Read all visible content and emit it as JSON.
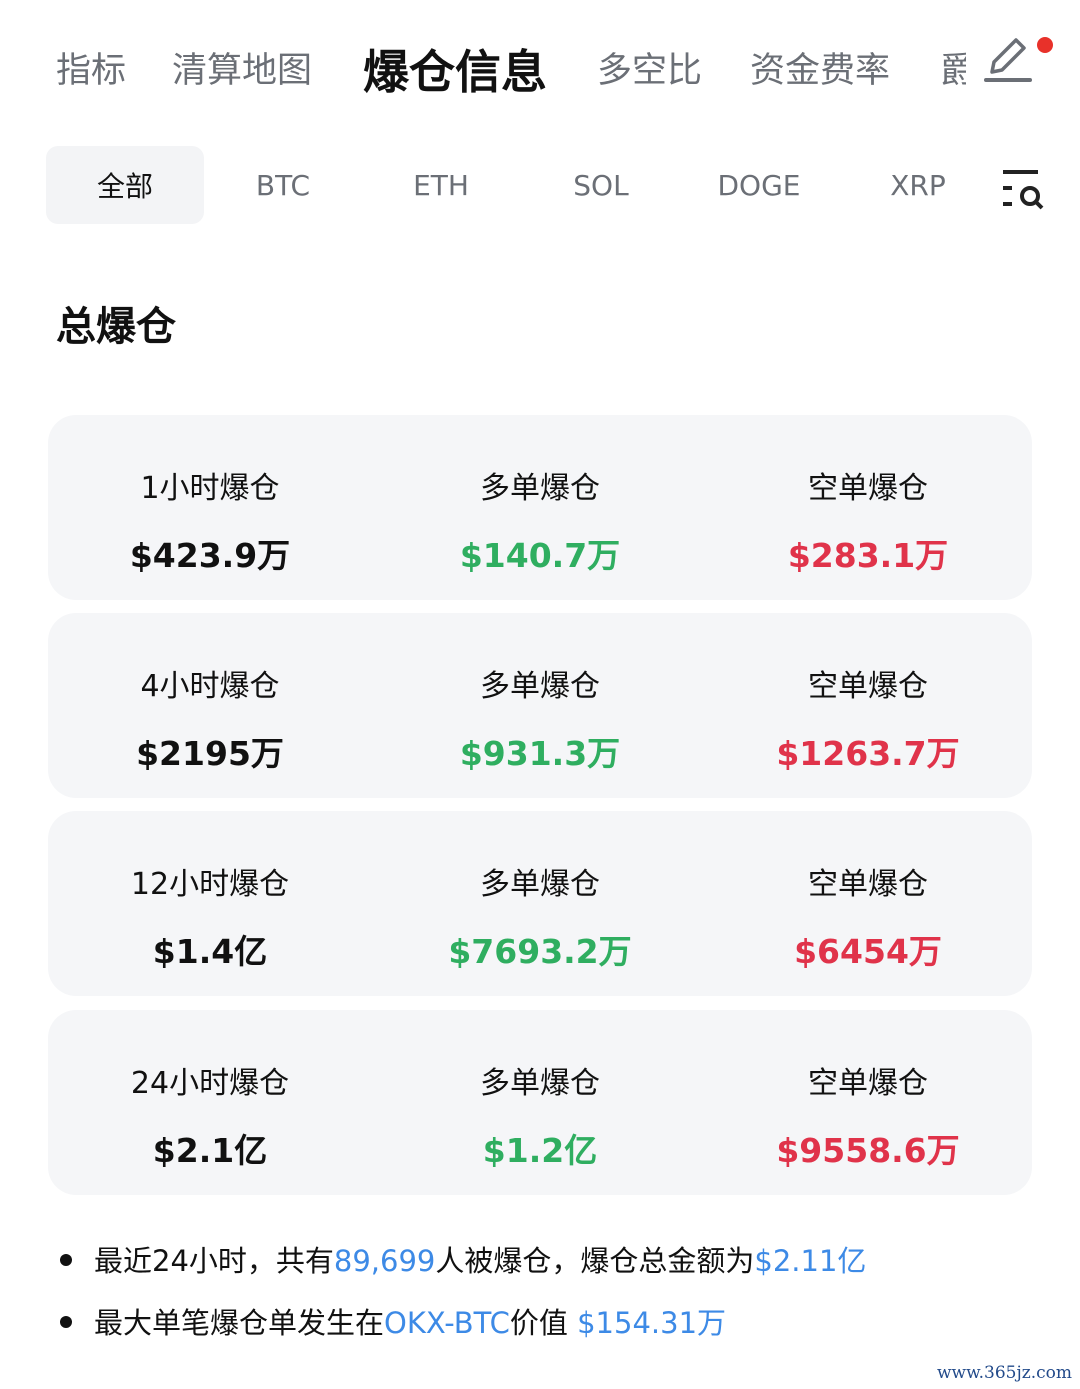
{
  "tabs": [
    {
      "label": "指标"
    },
    {
      "label": "清算地图"
    },
    {
      "label": "爆仓信息",
      "active": true
    },
    {
      "label": "多空比"
    },
    {
      "label": "资金费率"
    },
    {
      "label": "爵"
    }
  ],
  "icons": {
    "edit": "pencil-edit-icon",
    "notification_dot_color": "#e8312a",
    "filter": "list-search-icon"
  },
  "subtabs": [
    {
      "label": "全部",
      "active": true
    },
    {
      "label": "BTC"
    },
    {
      "label": "ETH"
    },
    {
      "label": "SOL"
    },
    {
      "label": "DOGE"
    },
    {
      "label": "XRP"
    }
  ],
  "section_title": "总爆仓",
  "colors": {
    "long": "#2fae60",
    "short": "#e0334a",
    "highlight": "#3d8ae6"
  },
  "cards": [
    {
      "total_label": "1小时爆仓",
      "total": "$423.9万",
      "long_label": "多单爆仓",
      "long": "$140.7万",
      "short_label": "空单爆仓",
      "short": "$283.1万"
    },
    {
      "total_label": "4小时爆仓",
      "total": "$2195万",
      "long_label": "多单爆仓",
      "long": "$931.3万",
      "short_label": "空单爆仓",
      "short": "$1263.7万"
    },
    {
      "total_label": "12小时爆仓",
      "total": "$1.4亿",
      "long_label": "多单爆仓",
      "long": "$7693.2万",
      "short_label": "空单爆仓",
      "short": "$6454万"
    },
    {
      "total_label": "24小时爆仓",
      "total": "$2.1亿",
      "long_label": "多单爆仓",
      "long": "$1.2亿",
      "short_label": "空单爆仓",
      "short": "$9558.6万"
    }
  ],
  "summary": {
    "line1": {
      "a": "最近24小时，共有",
      "people": "89,699",
      "b": "人被爆仓，爆仓总金额为",
      "total": "$2.11亿"
    },
    "line2": {
      "a": "最大单笔爆仓单发生在",
      "pair": "OKX-BTC",
      "b": "价值 ",
      "value": "$154.31万"
    }
  },
  "watermark": "www.365jz.com"
}
